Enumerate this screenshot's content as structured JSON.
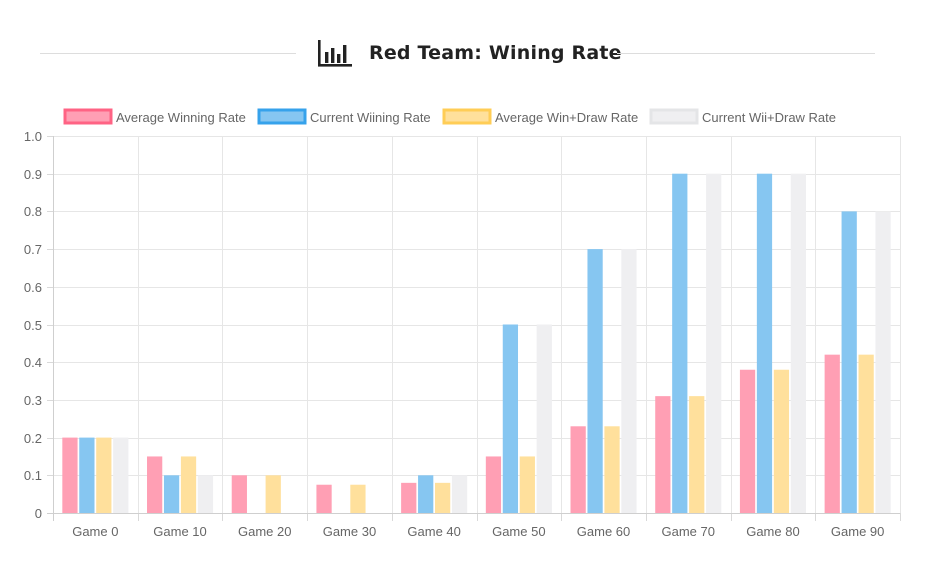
{
  "header": {
    "title": "Red Team: Wining Rate",
    "icon": "bar-chart-icon"
  },
  "chart_data": {
    "type": "bar",
    "title": "Red Team: Wining Rate",
    "xlabel": "",
    "ylabel": "",
    "ylim": [
      0,
      1.0
    ],
    "ytick_step": 0.1,
    "grid": true,
    "legend_position": "top",
    "categories": [
      "Game 0",
      "Game 10",
      "Game 20",
      "Game 30",
      "Game 40",
      "Game 50",
      "Game 60",
      "Game 70",
      "Game 80",
      "Game 90"
    ],
    "yticks": [
      "0",
      "0.1",
      "0.2",
      "0.3",
      "0.4",
      "0.5",
      "0.6",
      "0.7",
      "0.8",
      "0.9",
      "1.0"
    ],
    "series": [
      {
        "name": "Average Winning Rate",
        "fill": "#ff9fb4",
        "border": "#ff6384",
        "values": [
          0.2,
          0.15,
          0.1,
          0.075,
          0.08,
          0.15,
          0.23,
          0.31,
          0.38,
          0.42
        ]
      },
      {
        "name": "Current Wiining Rate",
        "fill": "#86c6f1",
        "border": "#36a2eb",
        "values": [
          0.2,
          0.1,
          0,
          0,
          0.1,
          0.5,
          0.7,
          0.9,
          0.9,
          0.8
        ]
      },
      {
        "name": "Average Win+Draw Rate",
        "fill": "#ffe09c",
        "border": "#ffcd56",
        "values": [
          0.2,
          0.15,
          0.1,
          0.075,
          0.08,
          0.15,
          0.23,
          0.31,
          0.38,
          0.42
        ]
      },
      {
        "name": "Current Wii+Draw Rate",
        "fill": "#efeff1",
        "border": "#e4e5e7",
        "values": [
          0.2,
          0.1,
          0,
          0,
          0.1,
          0.5,
          0.7,
          0.9,
          0.9,
          0.8
        ]
      }
    ]
  }
}
